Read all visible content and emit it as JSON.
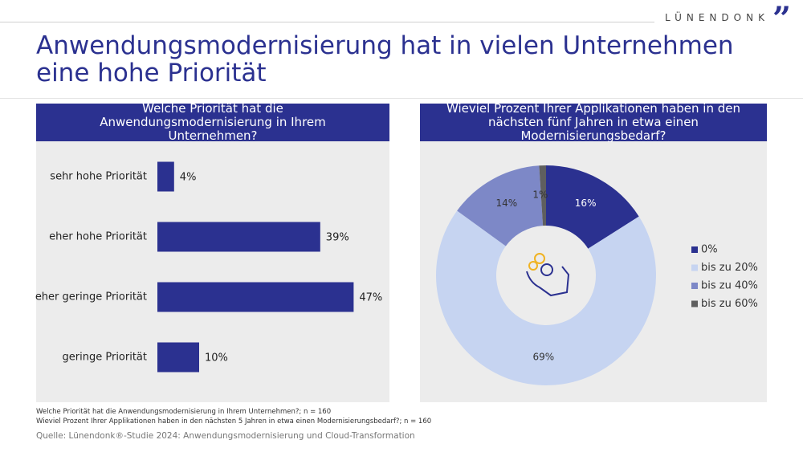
{
  "header": {
    "title": "Anwendungsmodernisierung hat in vielen Unternehmen eine hohe Priorität",
    "brand": "LÜNENDONK"
  },
  "chart_data": [
    {
      "type": "bar",
      "title": "Welche Priorität hat die Anwendungsmodernisierung in Ihrem Unternehmen?",
      "categories": [
        "sehr hohe Priorität",
        "eher hohe Priorität",
        "eher geringe Priorität",
        "geringe Priorität"
      ],
      "values": [
        4,
        39,
        47,
        10
      ],
      "value_labels": [
        "4%",
        "39%",
        "47%",
        "10%"
      ],
      "color": "#2b3190"
    },
    {
      "type": "pie",
      "title": "Wieviel Prozent Ihrer Applikationen haben in den nächsten fünf Jahren in etwa einen Modernisierungsbedarf?",
      "categories": [
        "0%",
        "bis zu 20%",
        "bis zu 40%",
        "bis zu 60%"
      ],
      "values": [
        16,
        69,
        14,
        1
      ],
      "value_labels": [
        "16%",
        "69%",
        "14%",
        "1%"
      ],
      "colors": [
        "#2b3190",
        "#c6d4f1",
        "#7d88c7",
        "#5f5f5f"
      ],
      "legend": "right"
    }
  ],
  "footnotes": [
    "Welche Priorität hat die Anwendungsmodernisierung in Ihrem Unternehmen?; n = 160",
    "Wieviel Prozent Ihrer Applikationen haben in den nächsten 5 Jahren in etwa einen Modernisierungsbedarf?; n = 160"
  ],
  "source": "Quelle: Lünendonk®-Studie 2024: Anwendungsmodernisierung und Cloud-Transformation"
}
